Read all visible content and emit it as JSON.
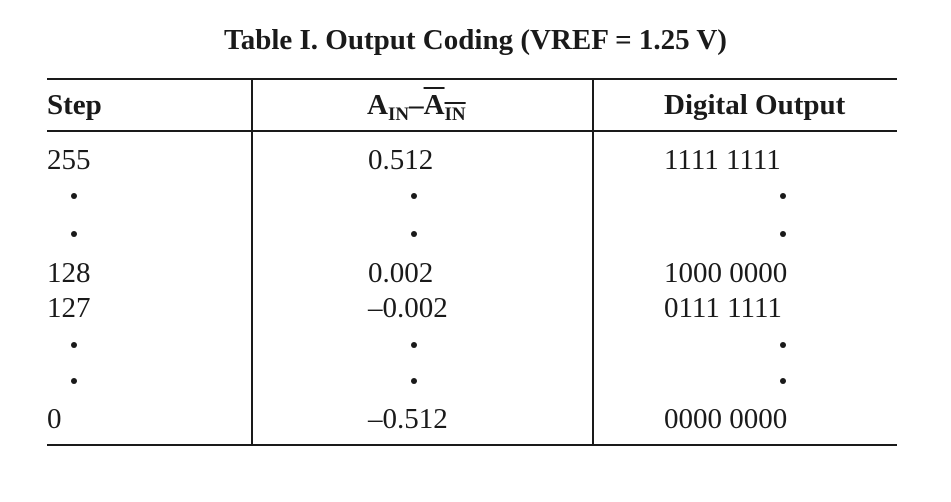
{
  "title": "Table I.  Output Coding (VREF = 1.25 V)",
  "headers": {
    "step": "Step",
    "ain_main": "A",
    "ain_sub": "IN",
    "ain_dash": "–",
    "ain_bar_main": "A",
    "ain_bar_sub": "IN",
    "digital": "Digital Output"
  },
  "rows": {
    "r255": {
      "step": "255",
      "ain": "0.512",
      "digital": "1111 1111"
    },
    "r128": {
      "step": "128",
      "ain": "0.002",
      "digital": "1000 0000"
    },
    "r127": {
      "step": "127",
      "ain": "–0.002",
      "digital": "0111 1111"
    },
    "r0": {
      "step": "0",
      "ain": "–0.512",
      "digital": "0000 0000"
    }
  },
  "ellipsis_glyph": "•"
}
